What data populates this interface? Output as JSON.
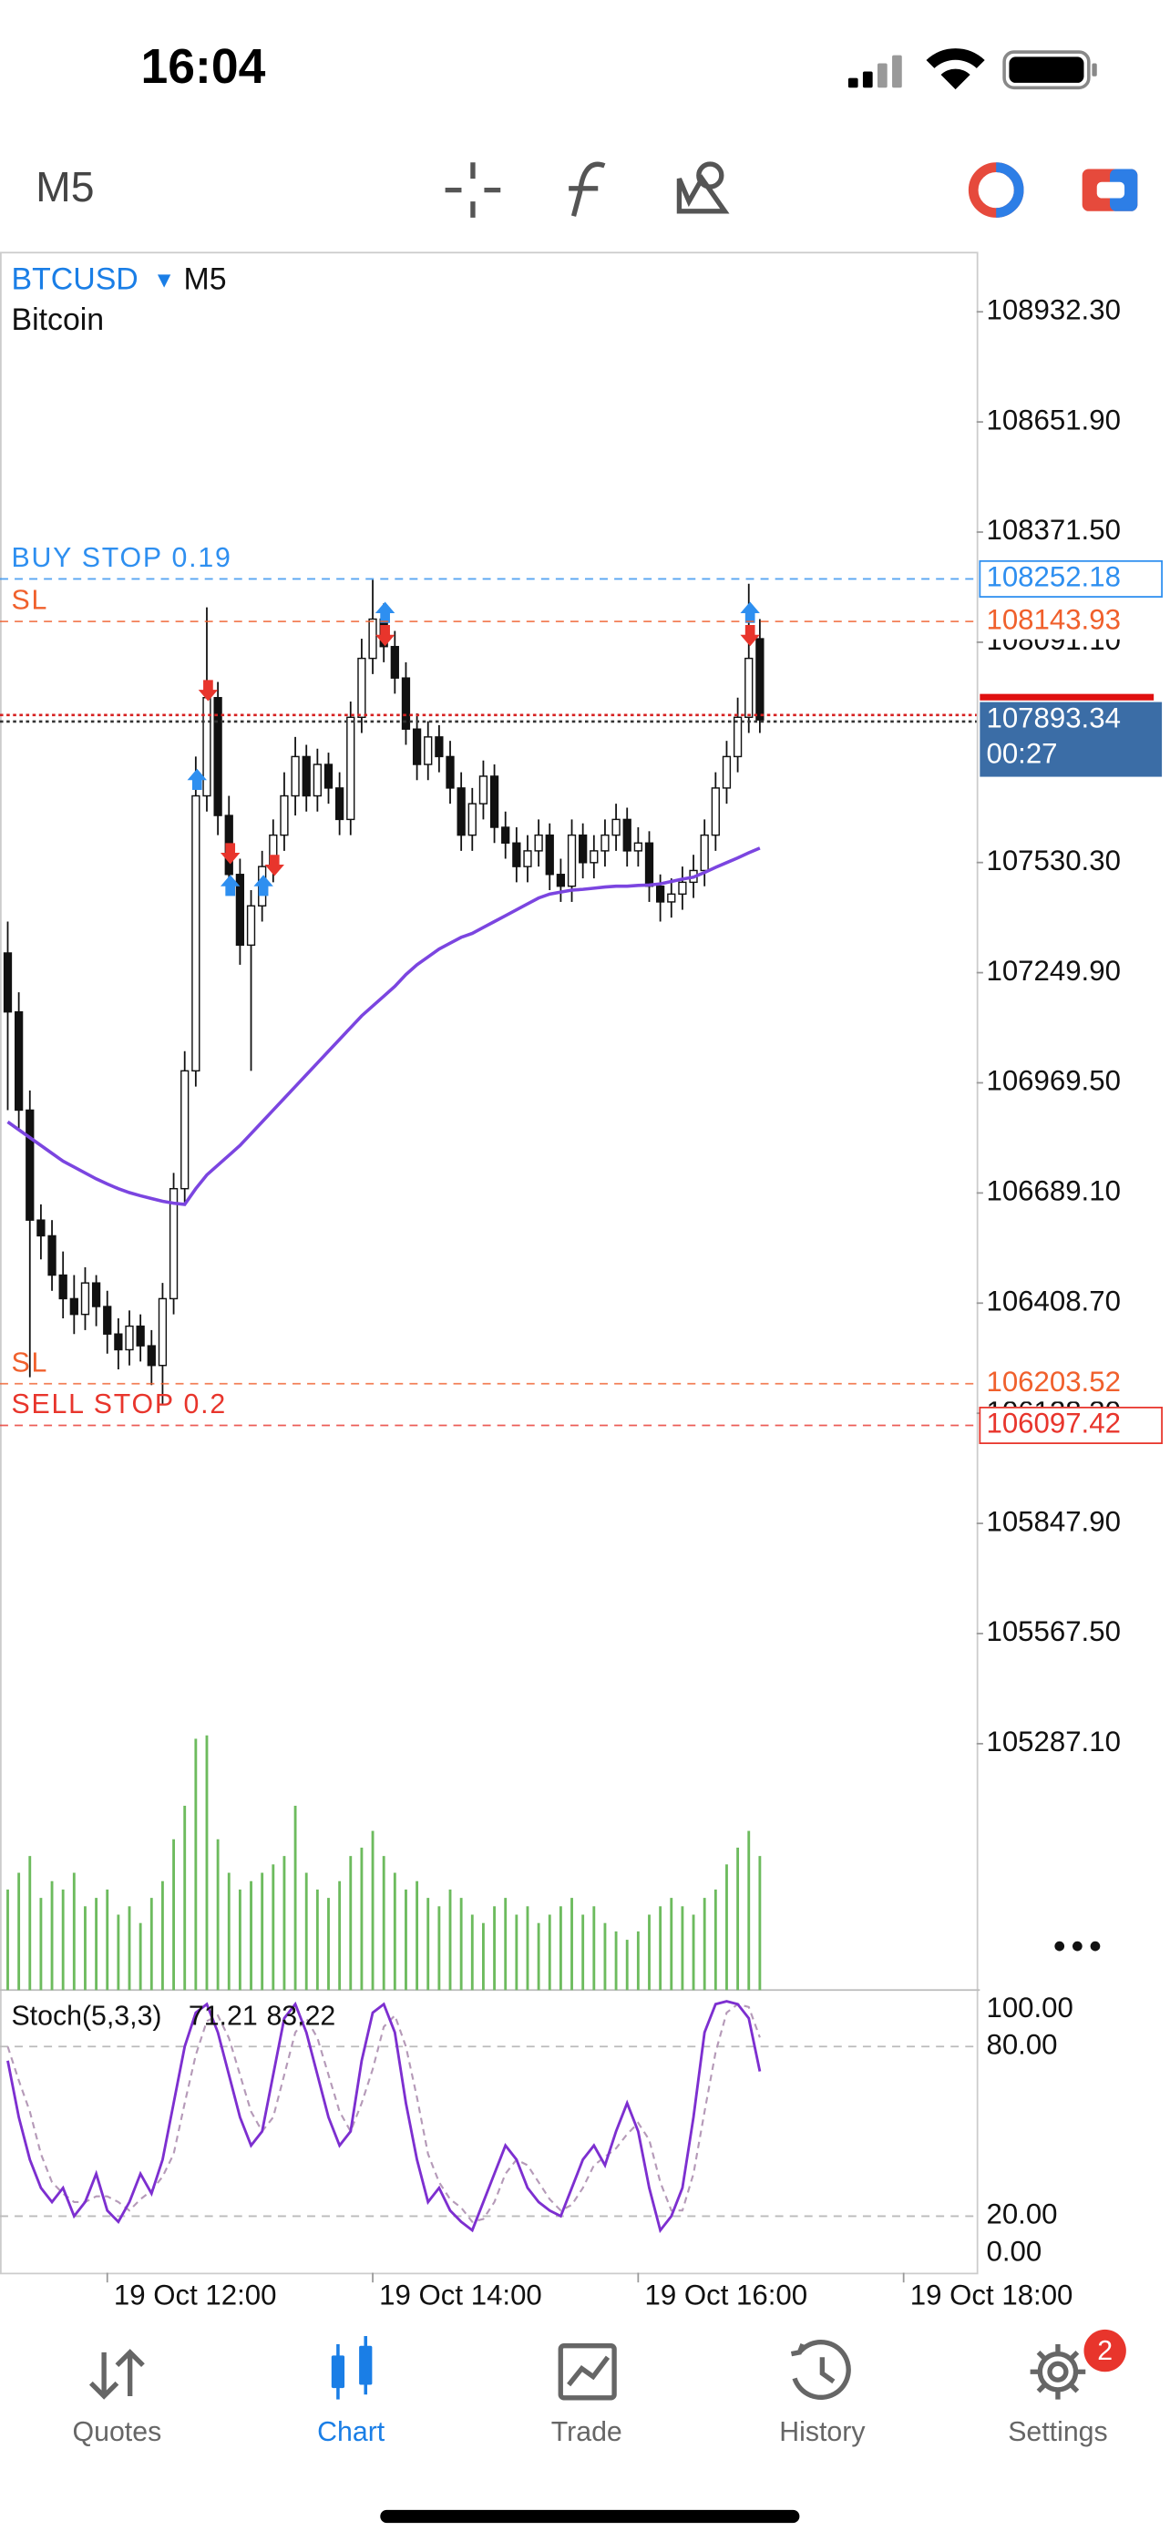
{
  "status_bar": {
    "time": "16:04"
  },
  "toolbar": {
    "timeframe": "M5"
  },
  "chart_data": {
    "type": "candlestick",
    "symbol": "BTCUSD",
    "timeframe": "M5",
    "description": "Bitcoin",
    "open": [
      107300,
      107150,
      106900,
      106620,
      106580,
      106480,
      106420,
      106380,
      106460,
      106400,
      106330,
      106290,
      106350,
      106300,
      106250,
      106420,
      106700,
      107000,
      107700,
      107950,
      107650,
      107500,
      107320,
      107420,
      107520,
      107600,
      107700,
      107800,
      107700,
      107780,
      107720,
      107640,
      107900,
      108050,
      108150,
      108080,
      108000,
      107870,
      107780,
      107850,
      107800,
      107720,
      107600,
      107680,
      107750,
      107620,
      107580,
      107520,
      107560,
      107600,
      107500,
      107470,
      107600,
      107530,
      107560,
      107600,
      107640,
      107560,
      107580,
      107470,
      107430,
      107450,
      107480,
      107510,
      107600,
      107720,
      107800,
      107900,
      108100
    ],
    "high": [
      107380,
      107200,
      106950,
      106660,
      106620,
      106540,
      106480,
      106500,
      106480,
      106440,
      106370,
      106390,
      106380,
      106340,
      106460,
      106740,
      107050,
      107800,
      108180,
      107990,
      107700,
      107540,
      107460,
      107560,
      107640,
      107760,
      107850,
      107830,
      107820,
      107810,
      107760,
      107940,
      108100,
      108250,
      108190,
      108120,
      108040,
      107910,
      107890,
      107880,
      107840,
      107760,
      107720,
      107790,
      107780,
      107660,
      107620,
      107600,
      107640,
      107630,
      107540,
      107640,
      107630,
      107600,
      107640,
      107680,
      107670,
      107620,
      107610,
      107500,
      107490,
      107520,
      107550,
      107640,
      107760,
      107840,
      107950,
      108240,
      108150
    ],
    "low": [
      106900,
      106850,
      106220,
      106520,
      106440,
      106370,
      106330,
      106340,
      106350,
      106280,
      106240,
      106250,
      106260,
      106200,
      106150,
      106380,
      106660,
      106960,
      107660,
      107600,
      107450,
      107270,
      107000,
      107380,
      107480,
      107560,
      107650,
      107660,
      107660,
      107680,
      107600,
      107600,
      107860,
      108010,
      108040,
      107960,
      107830,
      107740,
      107740,
      107760,
      107680,
      107560,
      107560,
      107640,
      107580,
      107540,
      107480,
      107480,
      107520,
      107460,
      107430,
      107430,
      107490,
      107490,
      107520,
      107560,
      107520,
      107520,
      107430,
      107380,
      107390,
      107410,
      107440,
      107470,
      107560,
      107680,
      107760,
      107860,
      107860
    ],
    "close": [
      107150,
      106900,
      106620,
      106580,
      106480,
      106420,
      106380,
      106460,
      106400,
      106330,
      106290,
      106350,
      106300,
      106250,
      106420,
      106700,
      107000,
      107700,
      107950,
      107650,
      107500,
      107320,
      107420,
      107520,
      107600,
      107700,
      107800,
      107700,
      107780,
      107720,
      107640,
      107900,
      108050,
      108150,
      108080,
      108000,
      107870,
      107780,
      107850,
      107800,
      107720,
      107600,
      107680,
      107750,
      107620,
      107580,
      107520,
      107560,
      107600,
      107500,
      107470,
      107600,
      107530,
      107560,
      107600,
      107640,
      107560,
      107580,
      107470,
      107430,
      107450,
      107480,
      107510,
      107600,
      107720,
      107800,
      107900,
      108050,
      107893.34
    ],
    "xlim": [
      -0.7,
      87.6
    ],
    "xticks": [
      {
        "value": 9,
        "label": "19 Oct 12:00"
      },
      {
        "value": 33,
        "label": "19 Oct 14:00"
      },
      {
        "value": 57,
        "label": "19 Oct 16:00"
      },
      {
        "value": 81,
        "label": "19 Oct 18:00"
      }
    ],
    "ylim": [
      104660,
      109085
    ],
    "yticks": [
      {
        "value": 108932.3,
        "label": "108932.30"
      },
      {
        "value": 108651.9,
        "label": "108651.90"
      },
      {
        "value": 108371.5,
        "label": "108371.50"
      },
      {
        "value": 108091.1,
        "label": "108091.10"
      },
      {
        "value": 107530.3,
        "label": "107530.30"
      },
      {
        "value": 107249.9,
        "label": "107249.90"
      },
      {
        "value": 106969.5,
        "label": "106969.50"
      },
      {
        "value": 106689.1,
        "label": "106689.10"
      },
      {
        "value": 106408.7,
        "label": "106408.70"
      },
      {
        "value": 106128.3,
        "label": "106128.30"
      },
      {
        "value": 105847.9,
        "label": "105847.90"
      },
      {
        "value": 105567.5,
        "label": "105567.50"
      },
      {
        "value": 105287.1,
        "label": "105287.10"
      }
    ],
    "moving_average": {
      "color": "#7b45e0",
      "values": [
        106870,
        106850,
        106830,
        106810,
        106790,
        106770,
        106755,
        106740,
        106725,
        106712,
        106700,
        106690,
        106682,
        106675,
        106668,
        106663,
        106660,
        106700,
        106735,
        106760,
        106785,
        106810,
        106840,
        106870,
        106900,
        106930,
        106960,
        106990,
        107020,
        107050,
        107080,
        107110,
        107140,
        107165,
        107190,
        107215,
        107245,
        107270,
        107290,
        107310,
        107325,
        107340,
        107350,
        107365,
        107380,
        107395,
        107410,
        107425,
        107440,
        107450,
        107455,
        107460,
        107462,
        107465,
        107468,
        107470,
        107470,
        107472,
        107473,
        107476,
        107482,
        107488,
        107493,
        107505,
        107518,
        107530,
        107542,
        107555,
        107567
      ]
    },
    "volume": {
      "color": "#6dbb5e",
      "ylim": [
        0,
        160
      ],
      "values": [
        60,
        70,
        80,
        55,
        65,
        60,
        70,
        50,
        55,
        60,
        45,
        50,
        40,
        55,
        65,
        90,
        110,
        150,
        152,
        90,
        70,
        60,
        65,
        70,
        75,
        80,
        110,
        70,
        60,
        55,
        65,
        80,
        85,
        95,
        80,
        70,
        60,
        65,
        55,
        50,
        60,
        55,
        45,
        40,
        50,
        55,
        45,
        50,
        40,
        45,
        50,
        55,
        45,
        50,
        40,
        35,
        30,
        35,
        45,
        50,
        55,
        50,
        45,
        55,
        60,
        75,
        85,
        95,
        80
      ]
    },
    "orders": [
      {
        "label": "BUY STOP 0.19",
        "price": 108252.18,
        "color": "#2e8ff0",
        "boxed": true
      },
      {
        "label": "SL",
        "price": 108143.93,
        "color": "#f0602c",
        "boxed": false
      },
      {
        "label": "SL",
        "price": 106203.52,
        "color": "#f0602c",
        "boxed": false
      },
      {
        "label": "SELL STOP 0.2",
        "price": 106097.42,
        "color": "#e8352c",
        "boxed": true
      }
    ],
    "current_price": 107893.34,
    "countdown": "00:27",
    "deals": [
      {
        "index": 18,
        "price": 107740,
        "side": "buy"
      },
      {
        "index": 19,
        "price": 107970,
        "side": "sell"
      },
      {
        "index": 21,
        "price": 107555,
        "side": "sell"
      },
      {
        "index": 21,
        "price": 107470,
        "side": "buy"
      },
      {
        "index": 24,
        "price": 107470,
        "side": "buy"
      },
      {
        "index": 25,
        "price": 107525,
        "side": "sell"
      },
      {
        "index": 35,
        "price": 108165,
        "side": "buy"
      },
      {
        "index": 35,
        "price": 108110,
        "side": "sell"
      },
      {
        "index": 68,
        "price": 108165,
        "side": "buy"
      },
      {
        "index": 68,
        "price": 108110,
        "side": "sell"
      }
    ],
    "stochastic": {
      "label": "Stoch(5,3,3)",
      "ylim": [
        0,
        100
      ],
      "yticks": [
        {
          "value": 100,
          "label": "100.00"
        },
        {
          "value": 80,
          "label": "80.00"
        },
        {
          "value": 20,
          "label": "20.00"
        },
        {
          "value": 0,
          "label": "0.00"
        }
      ],
      "main": {
        "color": "#7d2fd0",
        "values": [
          75,
          55,
          40,
          30,
          25,
          30,
          20,
          25,
          35,
          22,
          18,
          25,
          35,
          28,
          40,
          60,
          80,
          92,
          95,
          85,
          70,
          55,
          45,
          50,
          70,
          90,
          95,
          85,
          70,
          55,
          45,
          50,
          75,
          92,
          95,
          85,
          60,
          40,
          25,
          30,
          22,
          18,
          15,
          25,
          35,
          45,
          40,
          30,
          25,
          22,
          20,
          30,
          40,
          45,
          38,
          50,
          60,
          50,
          30,
          15,
          20,
          30,
          55,
          85,
          95,
          96,
          95,
          90,
          71.21
        ]
      },
      "signal": {
        "color": "#b59ab8",
        "values": [
          80,
          68,
          57,
          42,
          32,
          28,
          25,
          25,
          27,
          27,
          25,
          22,
          26,
          29,
          34,
          42,
          60,
          77,
          89,
          91,
          83,
          70,
          57,
          50,
          55,
          70,
          85,
          90,
          83,
          70,
          57,
          50,
          60,
          72,
          87,
          91,
          80,
          62,
          42,
          32,
          26,
          23,
          18,
          19,
          25,
          35,
          40,
          38,
          32,
          26,
          22,
          24,
          30,
          38,
          41,
          44,
          49,
          53,
          47,
          32,
          22,
          22,
          35,
          57,
          78,
          92,
          95,
          94,
          83.22
        ]
      }
    }
  },
  "tab_bar": {
    "tabs": [
      {
        "label": "Quotes",
        "active": false
      },
      {
        "label": "Chart",
        "active": true
      },
      {
        "label": "Trade",
        "active": false
      },
      {
        "label": "History",
        "active": false
      },
      {
        "label": "Settings",
        "active": false
      }
    ],
    "badge": 2
  }
}
